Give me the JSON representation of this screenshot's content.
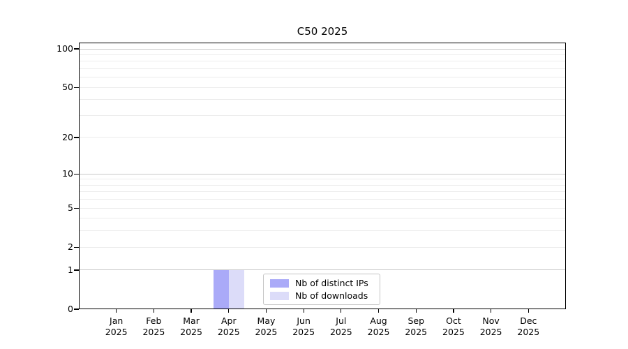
{
  "chart_data": {
    "type": "bar",
    "title": "C50 2025",
    "categories": [
      "Jan",
      "Feb",
      "Mar",
      "Apr",
      "May",
      "Jun",
      "Jul",
      "Aug",
      "Sep",
      "Oct",
      "Nov",
      "Dec"
    ],
    "x_year": "2025",
    "series": [
      {
        "name": "Nb of distinct IPs",
        "color": "#aaaaf8",
        "values": [
          0,
          0,
          0,
          1,
          0,
          0,
          0,
          0,
          0,
          0,
          0,
          0
        ]
      },
      {
        "name": "Nb of downloads",
        "color": "#dcdcf9",
        "values": [
          0,
          0,
          0,
          1,
          0,
          0,
          0,
          0,
          0,
          0,
          0,
          0
        ]
      }
    ],
    "yscale": "log10(1+y)",
    "ylim": [
      0,
      112
    ],
    "yticks": [
      0,
      1,
      2,
      5,
      10,
      20,
      50,
      100
    ],
    "major_gridlines": [
      1,
      10,
      100
    ],
    "minor_gridlines": [
      2,
      3,
      4,
      5,
      6,
      7,
      8,
      9,
      20,
      30,
      40,
      50,
      60,
      70,
      80,
      90
    ],
    "grid": true,
    "legend_position": "bottom-center",
    "xlabel": "",
    "ylabel": ""
  }
}
